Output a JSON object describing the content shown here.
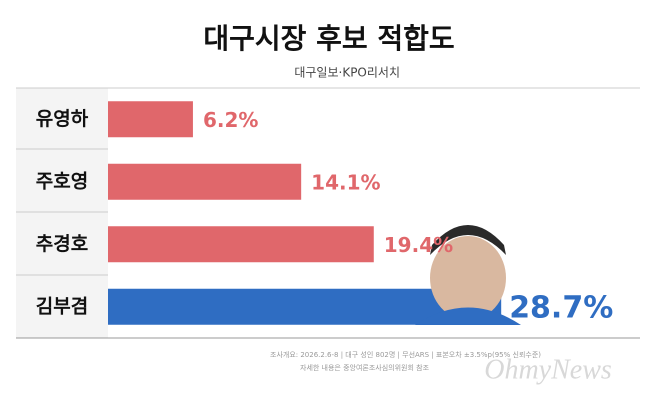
{
  "chart_data": {
    "type": "bar",
    "orientation": "horizontal",
    "title": "대구시장 후보 적합도",
    "subtitle": "대구일보·KPO리서치",
    "categories": [
      "유영하",
      "주호영",
      "추경호",
      "김부겸"
    ],
    "values": [
      6.2,
      14.1,
      19.4,
      28.7
    ],
    "value_labels": [
      "6.2%",
      "14.1%",
      "19.4%",
      "28.7%"
    ],
    "colors": [
      "#e0676b",
      "#e0676b",
      "#e0676b",
      "#2f6dc2"
    ],
    "xlim": [
      0,
      40
    ],
    "grid": false,
    "notes": [
      "조사개요: 2026.2.6-8 | 대구 성인 802명 | 무선ARS | 표본오차 ±3.5%p(95% 신뢰수준)",
      "자세한 내용은 중앙여론조사심의위원회 참조"
    ],
    "watermark": "OhmyNews"
  }
}
